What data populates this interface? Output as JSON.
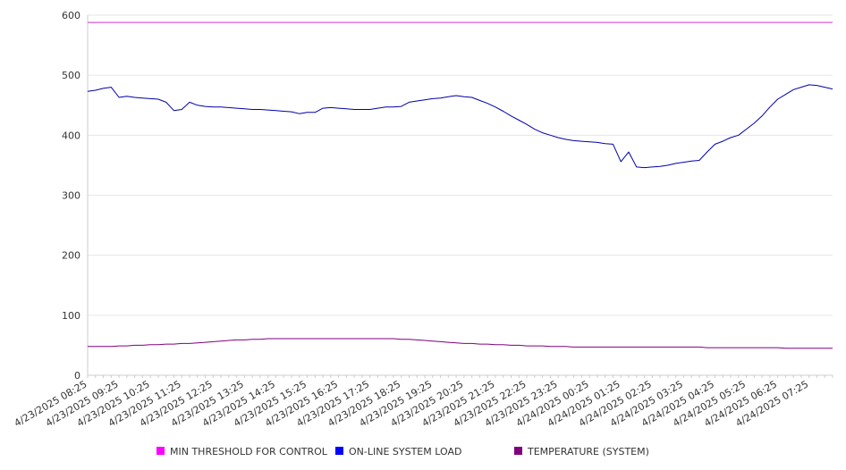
{
  "chart_data": {
    "type": "line",
    "title": "",
    "xlabel": "",
    "ylabel": "",
    "ylim": [
      0,
      600
    ],
    "y_ticks": [
      0,
      100,
      200,
      300,
      400,
      500,
      600
    ],
    "grid": true,
    "legend_position": "bottom",
    "x_tick_labels": [
      "4/23/2025 08:25",
      "4/23/2025 09:25",
      "4/23/2025 10:25",
      "4/23/2025 11:25",
      "4/23/2025 12:25",
      "4/23/2025 13:25",
      "4/23/2025 14:25",
      "4/23/2025 15:25",
      "4/23/2025 16:25",
      "4/23/2025 17:25",
      "4/23/2025 18:25",
      "4/23/2025 19:25",
      "4/23/2025 20:25",
      "4/23/2025 21:25",
      "4/23/2025 22:25",
      "4/23/2025 23:25",
      "4/24/2025 00:25",
      "4/24/2025 01:25",
      "4/24/2025 02:25",
      "4/24/2025 03:25",
      "4/24/2025 04:25",
      "4/24/2025 05:25",
      "4/24/2025 06:25",
      "4/24/2025 07:25"
    ],
    "x": [
      "08:25",
      "08:40",
      "08:55",
      "09:10",
      "09:25",
      "09:40",
      "09:55",
      "10:10",
      "10:25",
      "10:40",
      "10:55",
      "11:10",
      "11:25",
      "11:40",
      "11:55",
      "12:10",
      "12:25",
      "12:40",
      "12:55",
      "13:10",
      "13:25",
      "13:40",
      "13:55",
      "14:10",
      "14:25",
      "14:40",
      "14:55",
      "15:10",
      "15:25",
      "15:40",
      "15:55",
      "16:10",
      "16:25",
      "16:40",
      "16:55",
      "17:10",
      "17:25",
      "17:40",
      "17:55",
      "18:10",
      "18:25",
      "18:40",
      "18:55",
      "19:10",
      "19:25",
      "19:40",
      "19:55",
      "20:10",
      "20:25",
      "20:40",
      "20:55",
      "21:10",
      "21:25",
      "21:40",
      "21:55",
      "22:10",
      "22:25",
      "22:40",
      "22:55",
      "23:10",
      "23:25",
      "23:40",
      "23:55",
      "00:10",
      "00:25",
      "00:40",
      "00:55",
      "01:10",
      "01:25",
      "01:40",
      "01:55",
      "02:10",
      "02:25",
      "02:40",
      "02:55",
      "03:10",
      "03:25",
      "03:40",
      "03:55",
      "04:10",
      "04:25",
      "04:40",
      "04:55",
      "05:10",
      "05:25",
      "05:40",
      "05:55",
      "06:10",
      "06:25",
      "06:40",
      "06:55",
      "07:10",
      "07:25",
      "07:40",
      "07:55",
      "08:10"
    ],
    "series": [
      {
        "name": "MIN THRESHOLD FOR CONTROL",
        "color": "#cc33cc",
        "values": [
          588,
          588,
          588,
          588,
          588,
          588,
          588,
          588,
          588,
          588,
          588,
          588,
          588,
          588,
          588,
          588,
          588,
          588,
          588,
          588,
          588,
          588,
          588,
          588,
          588,
          588,
          588,
          588,
          588,
          588,
          588,
          588,
          588,
          588,
          588,
          588,
          588,
          588,
          588,
          588,
          588,
          588,
          588,
          588,
          588,
          588,
          588,
          588,
          588,
          588,
          588,
          588,
          588,
          588,
          588,
          588,
          588,
          588,
          588,
          588,
          588,
          588,
          588,
          588,
          588,
          588,
          588,
          588,
          588,
          588,
          588,
          588,
          588,
          588,
          588,
          588,
          588,
          588,
          588,
          588,
          588,
          588,
          588,
          588,
          588,
          588,
          588,
          588,
          588,
          588,
          588,
          588,
          588,
          588,
          588,
          588
        ]
      },
      {
        "name": "ON-LINE SYSTEM LOAD",
        "color": "#0000aa",
        "values": [
          473,
          475,
          478,
          480,
          463,
          465,
          463,
          462,
          461,
          460,
          455,
          441,
          443,
          455,
          450,
          448,
          447,
          447,
          446,
          445,
          444,
          443,
          443,
          442,
          441,
          440,
          439,
          436,
          438,
          438,
          445,
          446,
          445,
          444,
          443,
          443,
          443,
          445,
          447,
          447,
          448,
          455,
          457,
          459,
          461,
          462,
          464,
          466,
          464,
          463,
          458,
          453,
          447,
          440,
          432,
          425,
          418,
          410,
          404,
          400,
          396,
          393,
          391,
          390,
          389,
          388,
          386,
          385,
          356,
          372,
          347,
          346,
          347,
          348,
          350,
          353,
          355,
          357,
          358,
          372,
          385,
          390,
          396,
          400,
          410,
          420,
          432,
          447,
          460,
          468,
          476,
          480,
          484,
          483,
          480,
          477
        ]
      },
      {
        "name": "TEMPERATURE (SYSTEM)",
        "color": "#800080",
        "values": [
          48,
          48,
          48,
          48,
          49,
          49,
          50,
          50,
          51,
          51,
          52,
          52,
          53,
          53,
          54,
          55,
          56,
          57,
          58,
          59,
          59,
          60,
          60,
          61,
          61,
          61,
          61,
          61,
          61,
          61,
          61,
          61,
          61,
          61,
          61,
          61,
          61,
          61,
          61,
          61,
          60,
          60,
          59,
          58,
          57,
          56,
          55,
          54,
          53,
          53,
          52,
          52,
          51,
          51,
          50,
          50,
          49,
          49,
          49,
          48,
          48,
          48,
          47,
          47,
          47,
          47,
          47,
          47,
          47,
          47,
          47,
          47,
          47,
          47,
          47,
          47,
          47,
          47,
          47,
          46,
          46,
          46,
          46,
          46,
          46,
          46,
          46,
          46,
          46,
          45,
          45,
          45,
          45,
          45,
          45,
          45
        ]
      }
    ]
  }
}
